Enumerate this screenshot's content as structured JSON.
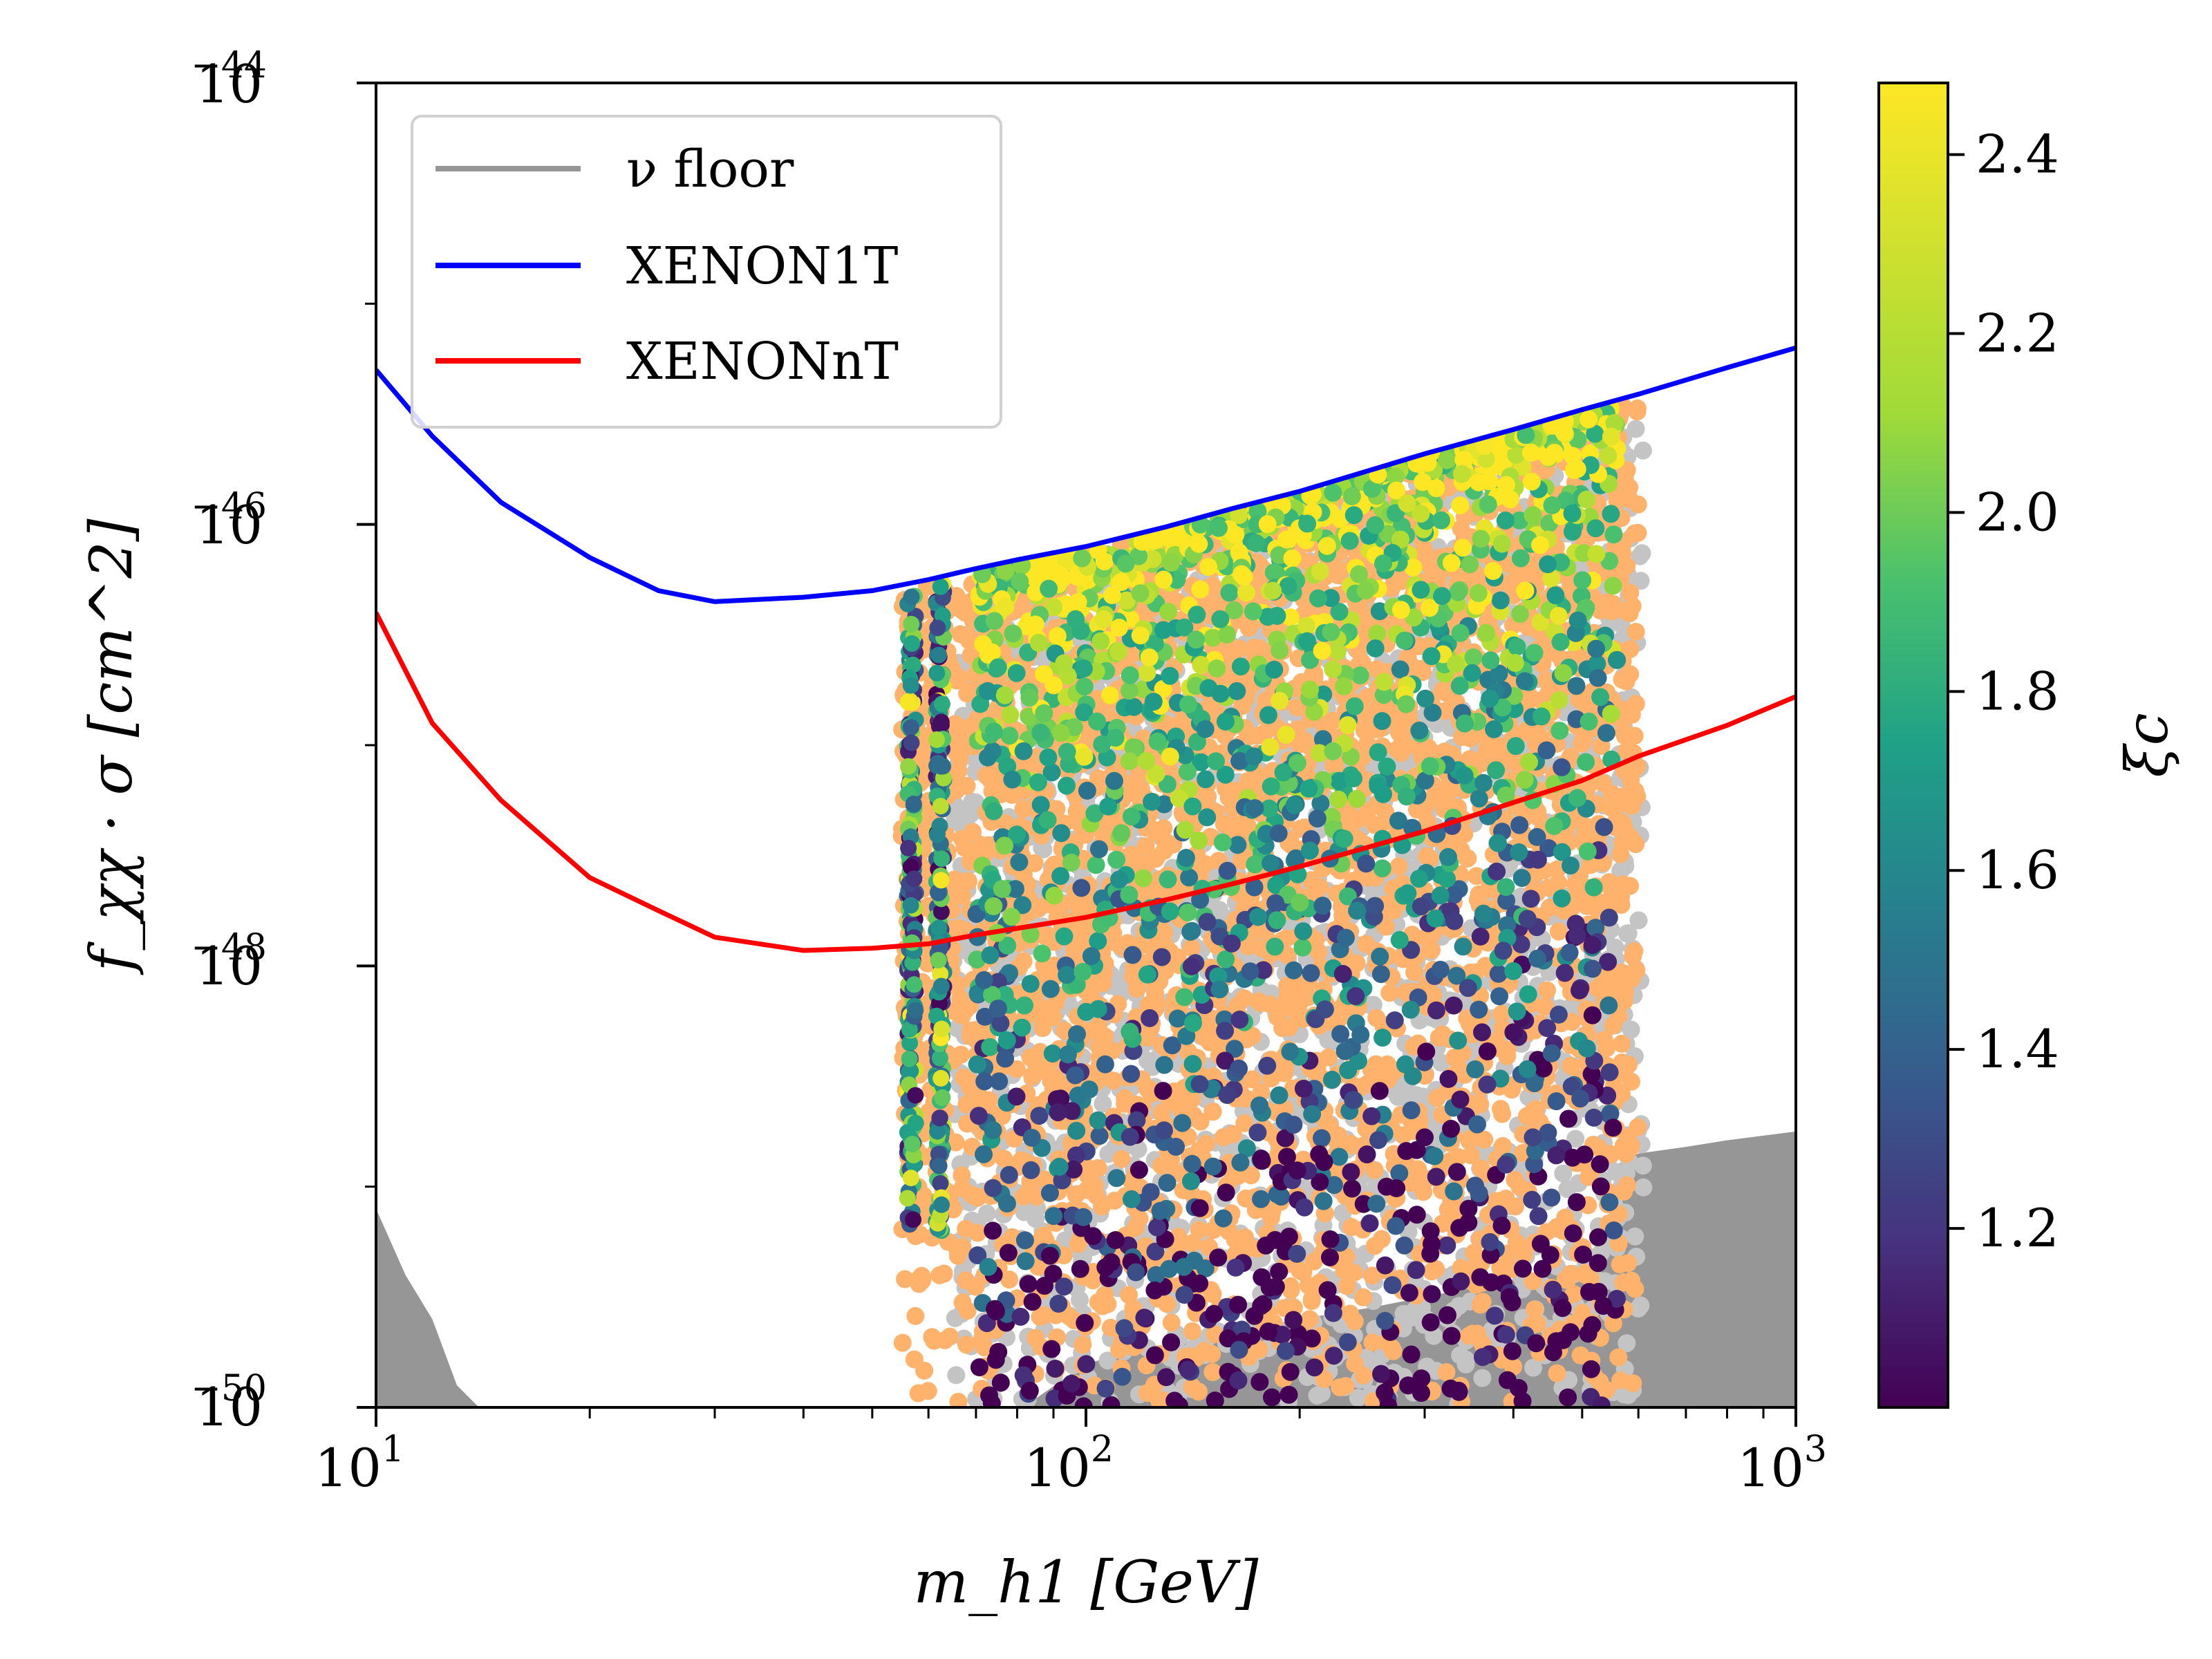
{
  "chart_data": {
    "type": "scatter",
    "title": "",
    "xlabel": "m_h1 [GeV]",
    "ylabel": "f_χχ · σ [cm^2]",
    "xscale": "log",
    "yscale": "log",
    "xlim": [
      10,
      1000
    ],
    "ylim": [
      1e-50,
      1e-44
    ],
    "x_ticks": [
      {
        "base": "10",
        "exp": "1",
        "value": 10
      },
      {
        "base": "10",
        "exp": "2",
        "value": 100
      },
      {
        "base": "10",
        "exp": "3",
        "value": 1000
      }
    ],
    "y_ticks": [
      {
        "base": "10",
        "exp": "−44",
        "value": -44
      },
      {
        "base": "10",
        "exp": "−46",
        "value": -46
      },
      {
        "base": "10",
        "exp": "−48",
        "value": -48
      },
      {
        "base": "10",
        "exp": "−50",
        "value": -50
      }
    ],
    "legend_position": "top-left",
    "series": [
      {
        "name": "ν floor",
        "kind": "filled-area",
        "color": "#969696",
        "x": [
          10,
          11,
          12,
          13,
          15,
          17,
          20,
          25,
          30,
          35,
          40,
          50,
          60,
          70,
          80,
          100,
          130,
          150,
          200,
          250,
          300,
          400,
          500,
          550,
          560,
          600,
          700,
          800,
          1000
        ],
        "log10_y": [
          -49.1,
          -49.4,
          -49.6,
          -49.9,
          -50.1,
          -50.2,
          -50.25,
          -50.27,
          -50.28,
          -50.25,
          -50.22,
          -50.15,
          -50.1,
          -50.05,
          -50.02,
          -49.8,
          -49.72,
          -49.68,
          -49.6,
          -49.55,
          -49.5,
          -49.42,
          -49.36,
          -49.3,
          -48.9,
          -48.85,
          -48.82,
          -48.79,
          -48.75
        ]
      },
      {
        "name": "XENON1T",
        "kind": "line",
        "color": "#0000ff",
        "x": [
          10,
          12,
          15,
          20,
          25,
          30,
          40,
          50,
          60,
          70,
          80,
          100,
          130,
          160,
          200,
          300,
          400,
          500,
          600,
          800,
          1000
        ],
        "log10_y": [
          -45.3,
          -45.6,
          -45.9,
          -46.15,
          -46.3,
          -46.35,
          -46.33,
          -46.3,
          -46.25,
          -46.2,
          -46.16,
          -46.1,
          -46.01,
          -45.93,
          -45.85,
          -45.68,
          -45.57,
          -45.48,
          -45.41,
          -45.29,
          -45.2
        ]
      },
      {
        "name": "XENONnT",
        "kind": "line",
        "color": "#ff0000",
        "x": [
          10,
          12,
          15,
          20,
          25,
          30,
          40,
          50,
          60,
          70,
          80,
          100,
          130,
          160,
          200,
          300,
          400,
          500,
          600,
          800,
          1000
        ],
        "log10_y": [
          -46.4,
          -46.9,
          -47.25,
          -47.6,
          -47.75,
          -47.87,
          -47.93,
          -47.92,
          -47.9,
          -47.86,
          -47.83,
          -47.78,
          -47.7,
          -47.63,
          -47.55,
          -47.39,
          -47.26,
          -47.16,
          -47.05,
          -46.91,
          -46.78
        ]
      },
      {
        "name": "allowed points (grey)",
        "kind": "scatter-region",
        "color": "#c4c4c4",
        "x_range": [
          65,
          610
        ],
        "log10_y_range": [
          -50.0,
          -45.4
        ]
      },
      {
        "name": "allowed points (orange)",
        "kind": "scatter-region",
        "color": "#ffb26b",
        "x_range": [
          55,
          600
        ],
        "log10_y_range": [
          -50.0,
          -45.4
        ]
      },
      {
        "name": "points colored by ξc",
        "kind": "scatter-colormap",
        "x_range": [
          55,
          580
        ],
        "log10_y_range": [
          -50.0,
          -45.5
        ],
        "zlim": [
          1.0,
          2.48
        ]
      }
    ],
    "colorbar": {
      "label": "ξc",
      "colormap": "viridis",
      "range": [
        1.0,
        2.48
      ],
      "ticks": [
        "1.2",
        "1.4",
        "1.6",
        "1.8",
        "2.0",
        "2.2",
        "2.4"
      ]
    }
  }
}
